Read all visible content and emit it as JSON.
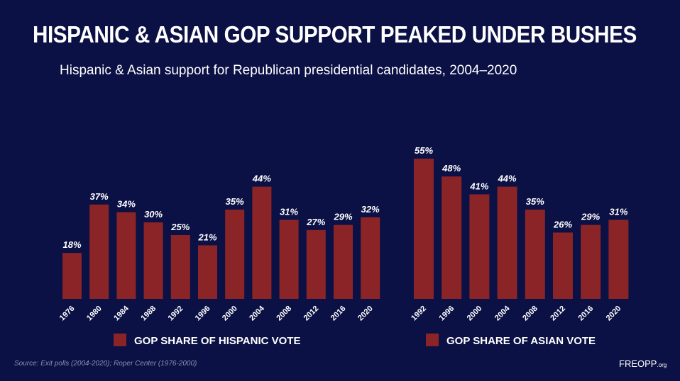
{
  "title": "HISPANIC & ASIAN GOP SUPPORT PEAKED UNDER BUSHES",
  "subtitle": "Hispanic & Asian support for Republican presidential candidates, 2004–2020",
  "source": "Source: Exit polls (2004-2020); Roper Center (1976-2000)",
  "brand": {
    "name": "FREOPP",
    "suffix": ".org"
  },
  "colors": {
    "background": "#0b1045",
    "bar": "#8b2426",
    "text": "#ffffff"
  },
  "chart_data": [
    {
      "type": "bar",
      "categories": [
        "1976",
        "1980",
        "1984",
        "1988",
        "1992",
        "1996",
        "2000",
        "2004",
        "2008",
        "2012",
        "2016",
        "2020"
      ],
      "series": [
        {
          "name": "GOP SHARE OF HISPANIC VOTE",
          "values": [
            18,
            37,
            34,
            30,
            25,
            21,
            35,
            44,
            31,
            27,
            29,
            32
          ]
        }
      ],
      "value_labels": [
        "18%",
        "37%",
        "34%",
        "30%",
        "25%",
        "21%",
        "35%",
        "44%",
        "31%",
        "27%",
        "29%",
        "32%"
      ],
      "legend": "bottom",
      "grid": false
    },
    {
      "type": "bar",
      "categories": [
        "1992",
        "1996",
        "2000",
        "2004",
        "2008",
        "2012",
        "2016",
        "2020"
      ],
      "series": [
        {
          "name": "GOP SHARE OF ASIAN VOTE",
          "values": [
            55,
            48,
            41,
            44,
            35,
            26,
            29,
            31
          ]
        }
      ],
      "value_labels": [
        "55%",
        "48%",
        "41%",
        "44%",
        "35%",
        "26%",
        "29%",
        "31%"
      ],
      "legend": "bottom",
      "grid": false
    }
  ]
}
